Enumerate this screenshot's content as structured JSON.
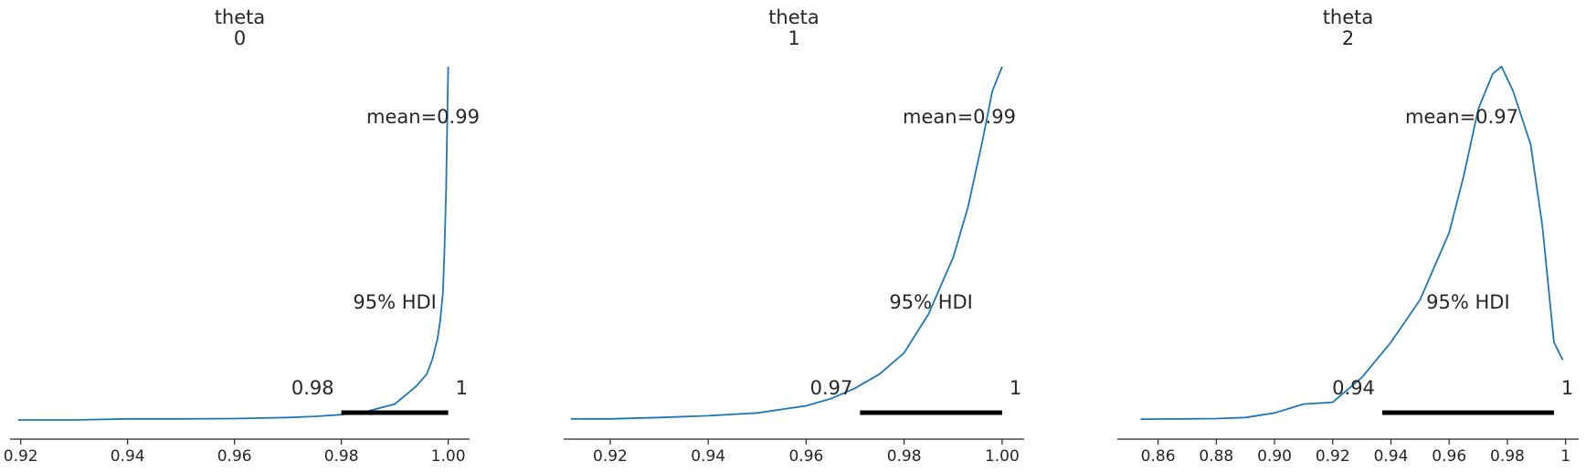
{
  "colors": {
    "density": "#1f77b4",
    "hdi": "#000000",
    "axis": "#262626"
  },
  "chart_data": [
    {
      "type": "line",
      "title": [
        "theta",
        "0"
      ],
      "xlim": [
        0.918,
        1.004
      ],
      "ylim": [
        0,
        1
      ],
      "xticks": [
        0.92,
        0.94,
        0.96,
        0.98,
        1.0
      ],
      "xtick_labels": [
        "0.92",
        "0.94",
        "0.96",
        "0.98",
        "1.00"
      ],
      "mean_label": "mean=0.99",
      "hdi_label": "95% HDI",
      "hdi_range": [
        0.98,
        1.0
      ],
      "hdi_low_label": "0.98",
      "hdi_high_label": "1",
      "x": [
        0.9195,
        0.93,
        0.94,
        0.95,
        0.96,
        0.97,
        0.975,
        0.98,
        0.985,
        0.99,
        0.992,
        0.994,
        0.996,
        0.997,
        0.998,
        0.9985,
        0.999,
        0.9993,
        0.9996,
        0.9998,
        1.0
      ],
      "y": [
        0.0,
        0.0,
        0.003,
        0.003,
        0.004,
        0.007,
        0.01,
        0.015,
        0.025,
        0.045,
        0.07,
        0.095,
        0.13,
        0.17,
        0.23,
        0.28,
        0.36,
        0.48,
        0.65,
        0.82,
        1.0
      ]
    },
    {
      "type": "line",
      "title": [
        "theta",
        "1"
      ],
      "xlim": [
        0.9105,
        1.0045
      ],
      "ylim": [
        0,
        1
      ],
      "xticks": [
        0.92,
        0.94,
        0.96,
        0.98,
        1.0
      ],
      "xtick_labels": [
        "0.92",
        "0.94",
        "0.96",
        "0.98",
        "1.00"
      ],
      "mean_label": "mean=0.99",
      "hdi_label": "95% HDI",
      "hdi_range": [
        0.971,
        1.0
      ],
      "hdi_low_label": "0.97",
      "hdi_high_label": "1",
      "x": [
        0.912,
        0.92,
        0.93,
        0.94,
        0.95,
        0.96,
        0.965,
        0.97,
        0.975,
        0.98,
        0.985,
        0.99,
        0.993,
        0.996,
        0.998,
        1.0
      ],
      "y": [
        0.003,
        0.003,
        0.007,
        0.012,
        0.02,
        0.04,
        0.06,
        0.09,
        0.13,
        0.19,
        0.3,
        0.46,
        0.6,
        0.79,
        0.93,
        1.0
      ]
    },
    {
      "type": "line",
      "title": [
        "theta",
        "2"
      ],
      "xlim": [
        0.846,
        1.0045
      ],
      "ylim": [
        0,
        1
      ],
      "xticks": [
        0.86,
        0.88,
        0.9,
        0.92,
        0.94,
        0.96,
        0.98,
        1.0
      ],
      "xtick_labels": [
        "0.86",
        "0.88",
        "0.90",
        "0.92",
        "0.94",
        "0.96",
        "0.98",
        "1"
      ],
      "mean_label": "mean=0.97",
      "hdi_label": "95% HDI",
      "hdi_range": [
        0.937,
        0.996
      ],
      "hdi_low_label": "0.94",
      "hdi_high_label": "1",
      "x": [
        0.854,
        0.87,
        0.88,
        0.89,
        0.9,
        0.91,
        0.92,
        0.93,
        0.94,
        0.95,
        0.96,
        0.965,
        0.97,
        0.975,
        0.978,
        0.982,
        0.988,
        0.992,
        0.996,
        0.999
      ],
      "y": [
        0.002,
        0.003,
        0.004,
        0.007,
        0.02,
        0.045,
        0.05,
        0.12,
        0.22,
        0.34,
        0.53,
        0.69,
        0.88,
        0.98,
        1.0,
        0.93,
        0.78,
        0.55,
        0.22,
        0.17
      ]
    }
  ]
}
